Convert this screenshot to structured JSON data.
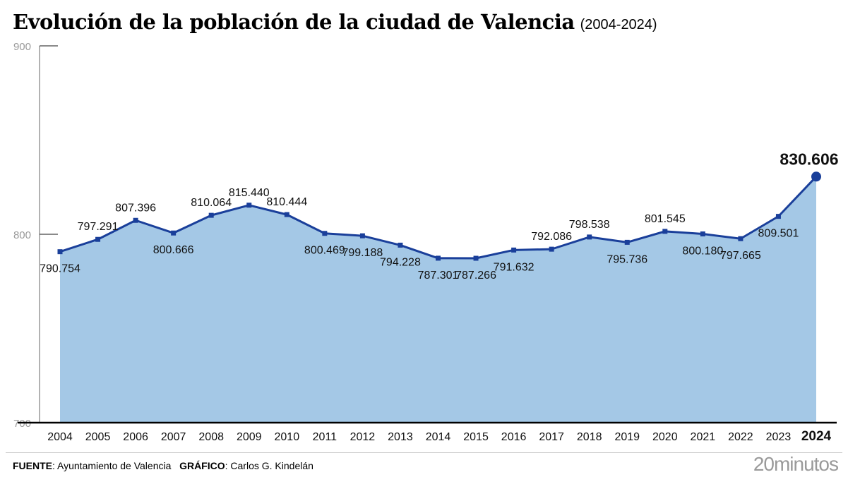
{
  "header": {
    "title": "Evolución de la población de la ciudad de Valencia",
    "subtitle": "(2004-2024)"
  },
  "footer": {
    "source_label": "FUENTE",
    "source": "Ayuntamiento de Valencia",
    "graphic_label": "GRÁFICO",
    "graphic": "Carlos G. Kindelán",
    "logo": "20minutos"
  },
  "chart_data": {
    "type": "area",
    "x": [
      "2004",
      "2005",
      "2006",
      "2007",
      "2008",
      "2009",
      "2010",
      "2011",
      "2012",
      "2013",
      "2014",
      "2015",
      "2016",
      "2017",
      "2018",
      "2019",
      "2020",
      "2021",
      "2022",
      "2023",
      "2024"
    ],
    "values": [
      790.754,
      797.291,
      807.396,
      800.666,
      810.064,
      815.44,
      810.444,
      800.469,
      799.188,
      794.228,
      787.301,
      787.266,
      791.632,
      792.086,
      798.538,
      795.736,
      801.545,
      800.18,
      797.665,
      809.501,
      830.606
    ],
    "labels": [
      "790.754",
      "797.291",
      "807.396",
      "800.666",
      "810.064",
      "815.440",
      "810.444",
      "800.469",
      "799.188",
      "794.228",
      "787.301",
      "787.266",
      "791.632",
      "792.086",
      "798.538",
      "795.736",
      "801.545",
      "800.180",
      "797.665",
      "809.501",
      "830.606"
    ],
    "yticks": [
      "700",
      "800",
      "900"
    ],
    "ylim": [
      700,
      900
    ],
    "highlight": "2024",
    "colors": {
      "line": "#1a3f9a",
      "area": "#a4c8e6"
    }
  }
}
